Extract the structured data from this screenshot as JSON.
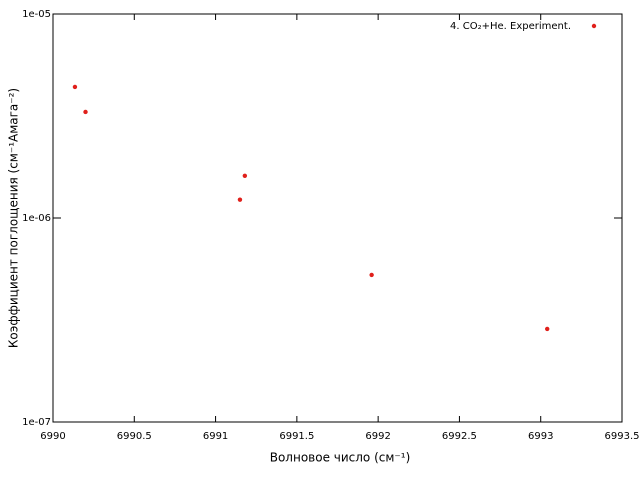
{
  "chart_data": {
    "type": "scatter",
    "xlabel": "Волновое число (см⁻¹)",
    "ylabel": "Коэффициент поглощения (см⁻¹Амага⁻²)",
    "series": [
      {
        "name": "4. CO₂+He. Experiment.",
        "color": "#e0201b",
        "x": [
          6990.135,
          6990.2,
          6991.18,
          6991.15,
          6991.96,
          6993.04
        ],
        "values": [
          4.39e-06,
          3.31e-06,
          1.61e-06,
          1.23e-06,
          5.26e-07,
          2.86e-07
        ]
      }
    ],
    "xlim": [
      6990,
      6993.5
    ],
    "xticks": [
      6990,
      6990.5,
      6991,
      6991.5,
      6992,
      6992.5,
      6993,
      6993.5
    ],
    "ylim": [
      1e-07,
      1e-05
    ],
    "yticks": [
      {
        "value": 1e-07,
        "label": "1e-07"
      },
      {
        "value": 1e-06,
        "label": "1e-06"
      },
      {
        "value": 1e-05,
        "label": "1e-05"
      }
    ],
    "ylog": true,
    "legend": "top-right"
  }
}
